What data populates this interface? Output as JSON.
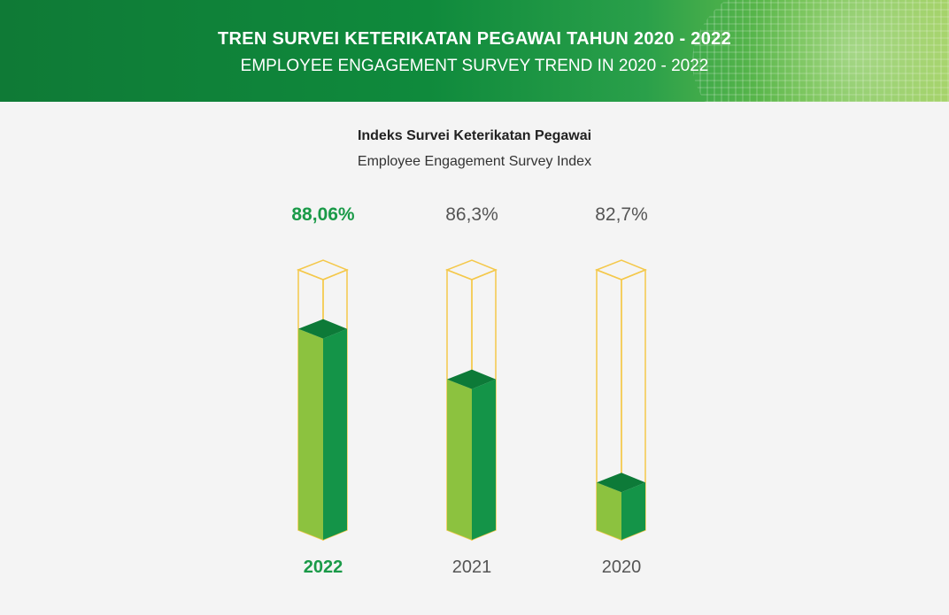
{
  "header": {
    "title": "TREN SURVEI KETERIKATAN PEGAWAI TAHUN 2020 - 2022",
    "subtitle": "EMPLOYEE ENGAGEMENT SURVEY TREND IN 2020 - 2022"
  },
  "colors": {
    "header_green": "#0f8a3c",
    "highlight_green": "#1a9a48",
    "bar_front": "#8cc23f",
    "bar_side": "#149448",
    "bar_top": "#0d7a38",
    "outline": "#f4c84a",
    "muted_text": "#555555"
  },
  "chart_data": {
    "type": "bar",
    "title": "Indeks Survei Keterikatan Pegawai",
    "subtitle": "Employee Engagement Survey Index",
    "categories": [
      "2022",
      "2021",
      "2020"
    ],
    "values": [
      88.06,
      86.3,
      82.7
    ],
    "value_labels": [
      "88,06%",
      "86,3%",
      "82,7%"
    ],
    "highlight_index": 0,
    "unit": "%"
  }
}
